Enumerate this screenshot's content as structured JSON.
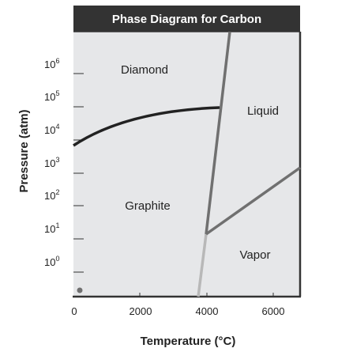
{
  "title": "Phase Diagram for Carbon",
  "x_axis": {
    "title": "Temperature (°C)",
    "ticks": [
      "0",
      "2000",
      "4000",
      "6000"
    ]
  },
  "y_axis": {
    "title": "Pressure (atm)",
    "ticks": [
      {
        "base": "10",
        "exp": "6"
      },
      {
        "base": "10",
        "exp": "5"
      },
      {
        "base": "10",
        "exp": "4"
      },
      {
        "base": "10",
        "exp": "3"
      },
      {
        "base": "10",
        "exp": "2"
      },
      {
        "base": "10",
        "exp": "1"
      },
      {
        "base": "10",
        "exp": "0"
      }
    ]
  },
  "regions": {
    "diamond": "Diamond",
    "liquid": "Liquid",
    "graphite": "Graphite",
    "vapor": "Vapor"
  },
  "colors": {
    "title_bar": "#333333",
    "plot_fill": "#e6e7e9",
    "graphite_diamond_boundary": "#222222",
    "phase_boundary": "#707070",
    "graphite_vapor_boundary": "#b8b8b8",
    "origin_dot": "#707070"
  }
}
